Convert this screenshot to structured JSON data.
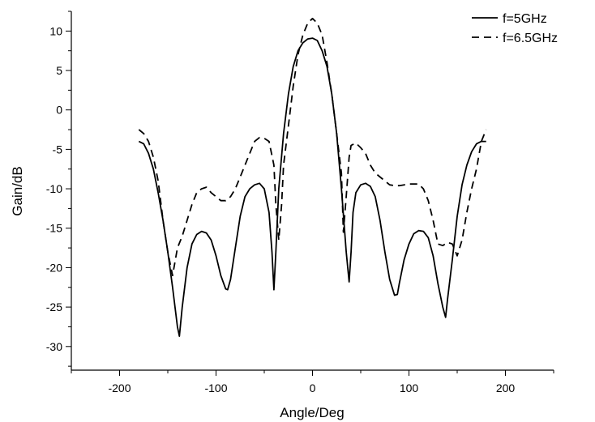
{
  "chart_data": {
    "type": "line",
    "xlabel": "Angle/Deg",
    "ylabel": "Gain/dB",
    "xlim": [
      -250,
      250
    ],
    "ylim": [
      -33,
      12.5
    ],
    "x_ticks": [
      -200,
      -100,
      0,
      100,
      200
    ],
    "x_tick_labels": [
      "-200",
      "-100",
      "0",
      "100",
      "200"
    ],
    "y_ticks": [
      10,
      5,
      0,
      -5,
      -10,
      -15,
      -20,
      -25,
      -30
    ],
    "y_tick_labels": [
      "10",
      "5",
      "0",
      "-5",
      "-10",
      "-15",
      "-20",
      "-25",
      "-30"
    ],
    "grid": false,
    "legend_position": "top-right",
    "series": [
      {
        "name": "f=5GHz",
        "style": "solid",
        "color": "#000000",
        "x": [
          -180,
          -175,
          -170,
          -165,
          -160,
          -155,
          -150,
          -145,
          -140,
          -138,
          -135,
          -130,
          -125,
          -120,
          -115,
          -110,
          -105,
          -100,
          -95,
          -90,
          -88,
          -85,
          -80,
          -75,
          -70,
          -65,
          -60,
          -55,
          -50,
          -45,
          -42,
          -40,
          -38,
          -35,
          -30,
          -25,
          -20,
          -15,
          -10,
          -5,
          0,
          5,
          10,
          15,
          20,
          25,
          30,
          35,
          38,
          40,
          42,
          45,
          50,
          55,
          60,
          65,
          70,
          75,
          80,
          85,
          88,
          90,
          95,
          100,
          105,
          110,
          115,
          120,
          125,
          130,
          135,
          138,
          140,
          145,
          150,
          155,
          160,
          165,
          170,
          175,
          180
        ],
        "y": [
          -4,
          -4.3,
          -5.5,
          -7.5,
          -10.5,
          -14,
          -18,
          -22.5,
          -27.5,
          -28.7,
          -25,
          -20,
          -17,
          -15.8,
          -15.4,
          -15.6,
          -16.5,
          -18.5,
          -21,
          -22.7,
          -22.8,
          -21.5,
          -17.5,
          -13.5,
          -11,
          -10,
          -9.5,
          -9.3,
          -10,
          -13,
          -18,
          -22.8,
          -18,
          -10,
          -3,
          2,
          5.5,
          7.5,
          8.5,
          9,
          9.1,
          8.8,
          7.5,
          5.5,
          2,
          -3,
          -10,
          -18,
          -21.8,
          -18,
          -13,
          -10.5,
          -9.5,
          -9.3,
          -9.7,
          -11,
          -14,
          -18,
          -21.5,
          -23.5,
          -23.4,
          -22,
          -19,
          -17,
          -15.7,
          -15.3,
          -15.4,
          -16.2,
          -18.5,
          -22,
          -25,
          -26.3,
          -24,
          -19,
          -13.5,
          -9.5,
          -7,
          -5.3,
          -4.3,
          -4,
          -4
        ]
      },
      {
        "name": "f=6.5GHz",
        "style": "dashed",
        "color": "#000000",
        "x": [
          -180,
          -175,
          -170,
          -165,
          -160,
          -155,
          -150,
          -145,
          -140,
          -135,
          -130,
          -125,
          -120,
          -115,
          -110,
          -105,
          -100,
          -95,
          -90,
          -85,
          -80,
          -75,
          -70,
          -65,
          -60,
          -55,
          -50,
          -45,
          -40,
          -38,
          -35,
          -32,
          -30,
          -25,
          -20,
          -15,
          -10,
          -5,
          0,
          5,
          10,
          15,
          20,
          25,
          30,
          32,
          35,
          38,
          40,
          45,
          50,
          55,
          60,
          65,
          70,
          75,
          80,
          85,
          90,
          95,
          100,
          105,
          110,
          115,
          120,
          125,
          130,
          135,
          140,
          145,
          150,
          155,
          160,
          165,
          170,
          175,
          180
        ],
        "y": [
          -2.5,
          -3,
          -4,
          -6,
          -9,
          -14,
          -18,
          -21,
          -17.5,
          -16,
          -14,
          -12,
          -10.5,
          -10,
          -9.8,
          -10.5,
          -11,
          -11.5,
          -11.5,
          -11,
          -10,
          -8.5,
          -7,
          -5.5,
          -4,
          -3.5,
          -3.6,
          -4,
          -7,
          -12,
          -16.5,
          -12,
          -7,
          -2,
          3,
          7,
          9.5,
          11,
          11.6,
          11,
          9.5,
          6,
          2,
          -3,
          -8,
          -15.5,
          -11,
          -6,
          -4.5,
          -4.2,
          -4.8,
          -5.5,
          -7,
          -8,
          -8.5,
          -9,
          -9.5,
          -9.6,
          -9.6,
          -9.5,
          -9.4,
          -9.4,
          -9.4,
          -10,
          -11.5,
          -14,
          -17,
          -17.2,
          -16.8,
          -17,
          -18.5,
          -16.5,
          -13,
          -10,
          -7.5,
          -4,
          -2.5
        ]
      }
    ]
  }
}
